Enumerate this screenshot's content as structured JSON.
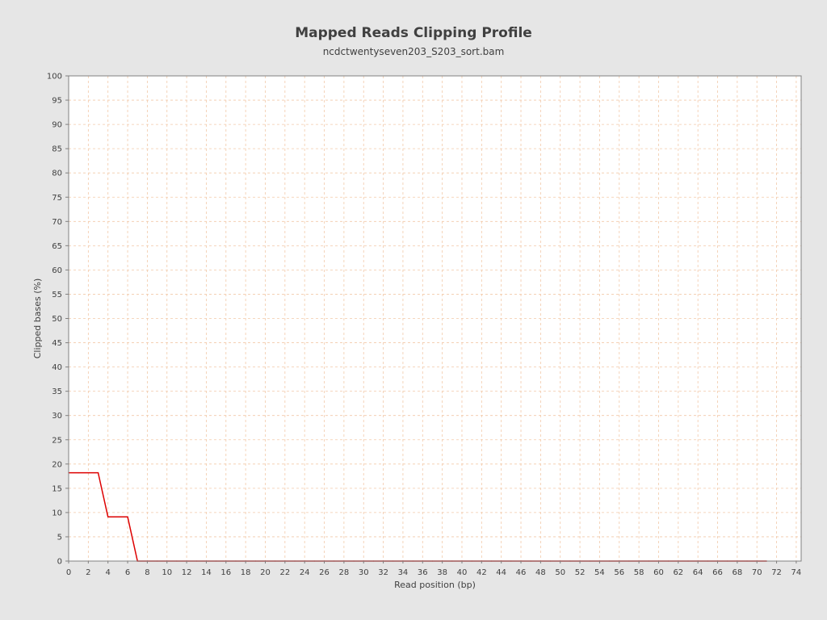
{
  "colors": {
    "background": "#e6e6e6",
    "plot_background": "#ffffff",
    "gridline": "#f2c9a9",
    "series_line": "#dd0000",
    "text": "#404040"
  },
  "chart_data": {
    "type": "line",
    "title": "Mapped Reads Clipping Profile",
    "subtitle": "ncdctwentyseven203_S203_sort.bam",
    "xlabel": "Read position (bp)",
    "ylabel": "Clipped bases (%)",
    "xlim": [
      0,
      74.5
    ],
    "ylim": [
      0,
      100
    ],
    "x_ticks": [
      0,
      2,
      4,
      6,
      8,
      10,
      12,
      14,
      16,
      18,
      20,
      22,
      24,
      26,
      28,
      30,
      32,
      34,
      36,
      38,
      40,
      42,
      44,
      46,
      48,
      50,
      52,
      54,
      56,
      58,
      60,
      62,
      64,
      66,
      68,
      70,
      72,
      74
    ],
    "y_ticks": [
      0,
      5,
      10,
      15,
      20,
      25,
      30,
      35,
      40,
      45,
      50,
      55,
      60,
      65,
      70,
      75,
      80,
      85,
      90,
      95,
      100
    ],
    "grid": true,
    "legend": "none",
    "series": [
      {
        "color": "#dd0000",
        "x": [
          0,
          1,
          2,
          3,
          4,
          5,
          6,
          7,
          8,
          9,
          10,
          11,
          12,
          13,
          14,
          15,
          16,
          17,
          18,
          19,
          20,
          21,
          22,
          23,
          24,
          25,
          26,
          27,
          28,
          29,
          30,
          31,
          32,
          33,
          34,
          35,
          36,
          37,
          38,
          39,
          40,
          41,
          42,
          43,
          44,
          45,
          46,
          47,
          48,
          49,
          50,
          51,
          52,
          53,
          54,
          55,
          56,
          57,
          58,
          59,
          60,
          61,
          62,
          63,
          64,
          65,
          66,
          67,
          68,
          69,
          70,
          71
        ],
        "y": [
          18.2,
          18.2,
          18.2,
          18.2,
          9.1,
          9.1,
          9.1,
          0,
          0,
          0,
          0,
          0,
          0,
          0,
          0,
          0,
          0,
          0,
          0,
          0,
          0,
          0,
          0,
          0,
          0,
          0,
          0,
          0,
          0,
          0,
          0,
          0,
          0,
          0,
          0,
          0,
          0,
          0,
          0,
          0,
          0,
          0,
          0,
          0,
          0,
          0,
          0,
          0,
          0,
          0,
          0,
          0,
          0,
          0,
          0,
          0,
          0,
          0,
          0,
          0,
          0,
          0,
          0,
          0,
          0,
          0,
          0,
          0,
          0,
          0,
          0,
          0
        ]
      }
    ]
  }
}
